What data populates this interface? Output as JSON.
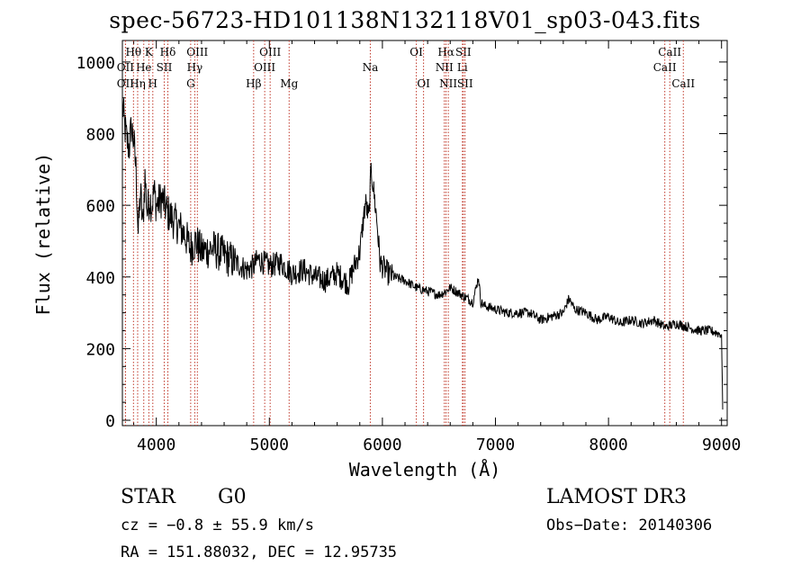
{
  "chart_data": {
    "type": "line",
    "title": "spec-56723-HD101138N132118V01_sp03-043.fits",
    "xlabel": "Wavelength (Å)",
    "ylabel": "Flux (relative)",
    "xlim": [
      3700,
      9050
    ],
    "ylim": [
      -15,
      1060
    ],
    "x_ticks": [
      4000,
      5000,
      6000,
      7000,
      8000,
      9000
    ],
    "y_ticks": [
      0,
      200,
      400,
      600,
      800,
      1000
    ],
    "series": [
      {
        "name": "spectrum",
        "x": [
          3700,
          3720,
          3740,
          3760,
          3780,
          3800,
          3820,
          3840,
          3860,
          3880,
          3900,
          3920,
          3940,
          3960,
          3980,
          4000,
          4050,
          4100,
          4150,
          4200,
          4250,
          4300,
          4350,
          4400,
          4500,
          4600,
          4700,
          4800,
          4861,
          4900,
          5000,
          5100,
          5200,
          5300,
          5400,
          5500,
          5600,
          5700,
          5750,
          5800,
          5850,
          5880,
          5900,
          5920,
          5950,
          5980,
          6000,
          6050,
          6100,
          6200,
          6300,
          6400,
          6500,
          6563,
          6600,
          6700,
          6750,
          6800,
          6850,
          6870,
          6900,
          7000,
          7100,
          7200,
          7300,
          7400,
          7500,
          7600,
          7650,
          7700,
          7800,
          7900,
          8000,
          8100,
          8200,
          8300,
          8400,
          8500,
          8600,
          8700,
          8800,
          8900,
          9000,
          9010
        ],
        "y": [
          880,
          820,
          780,
          760,
          820,
          780,
          700,
          520,
          640,
          540,
          680,
          580,
          620,
          600,
          640,
          600,
          620,
          580,
          560,
          540,
          520,
          480,
          500,
          470,
          480,
          460,
          440,
          420,
          430,
          450,
          430,
          440,
          410,
          420,
          400,
          390,
          410,
          380,
          430,
          470,
          610,
          560,
          700,
          650,
          560,
          440,
          430,
          410,
          400,
          390,
          370,
          360,
          350,
          360,
          370,
          350,
          340,
          330,
          400,
          330,
          320,
          310,
          300,
          300,
          300,
          280,
          290,
          300,
          340,
          310,
          300,
          280,
          290,
          270,
          280,
          270,
          280,
          260,
          270,
          260,
          250,
          250,
          240,
          30
        ]
      }
    ]
  },
  "line_markers": [
    {
      "label": "Hθ",
      "x": 3798,
      "row": 1
    },
    {
      "label": "OII",
      "x": 3727,
      "row": 2
    },
    {
      "label": "OII",
      "x": 3727,
      "row": 3
    },
    {
      "label": "He",
      "x": 3889,
      "row": 2
    },
    {
      "label": "Hη",
      "x": 3835,
      "row": 3
    },
    {
      "label": "K",
      "x": 3934,
      "row": 1
    },
    {
      "label": "H",
      "x": 3969,
      "row": 3
    },
    {
      "label": "SII",
      "x": 4070,
      "row": 2
    },
    {
      "label": "Hδ",
      "x": 4102,
      "row": 1
    },
    {
      "label": "OIII",
      "x": 4363,
      "row": 1
    },
    {
      "label": "Hγ",
      "x": 4340,
      "row": 2
    },
    {
      "label": "G",
      "x": 4304,
      "row": 3
    },
    {
      "label": "Hβ",
      "x": 4861,
      "row": 3
    },
    {
      "label": "OIII",
      "x": 5007,
      "row": 1
    },
    {
      "label": "OIII",
      "x": 4959,
      "row": 2
    },
    {
      "label": "Mg",
      "x": 5175,
      "row": 3
    },
    {
      "label": "Na",
      "x": 5893,
      "row": 2
    },
    {
      "label": "OI",
      "x": 6300,
      "row": 1
    },
    {
      "label": "OI",
      "x": 6364,
      "row": 3
    },
    {
      "label": "Hα",
      "x": 6563,
      "row": 1
    },
    {
      "label": "NII",
      "x": 6548,
      "row": 2
    },
    {
      "label": "NII",
      "x": 6583,
      "row": 3
    },
    {
      "label": "SII",
      "x": 6716,
      "row": 1
    },
    {
      "label": "Li",
      "x": 6708,
      "row": 2
    },
    {
      "label": "SII",
      "x": 6731,
      "row": 3
    },
    {
      "label": "CaII",
      "x": 8542,
      "row": 1
    },
    {
      "label": "CaII",
      "x": 8498,
      "row": 2
    },
    {
      "label": "CaII",
      "x": 8662,
      "row": 3
    }
  ],
  "info": {
    "class_label": "STAR",
    "subclass": "G0",
    "survey": "LAMOST DR3",
    "cz": "cz = −0.8 ± 55.9 km/s",
    "obs_date": "Obs−Date: 20140306",
    "coords": "RA = 151.88032, DEC =  12.95735"
  },
  "colors": {
    "line": "#000000",
    "marker": "#c0392b",
    "axis": "#000000"
  }
}
